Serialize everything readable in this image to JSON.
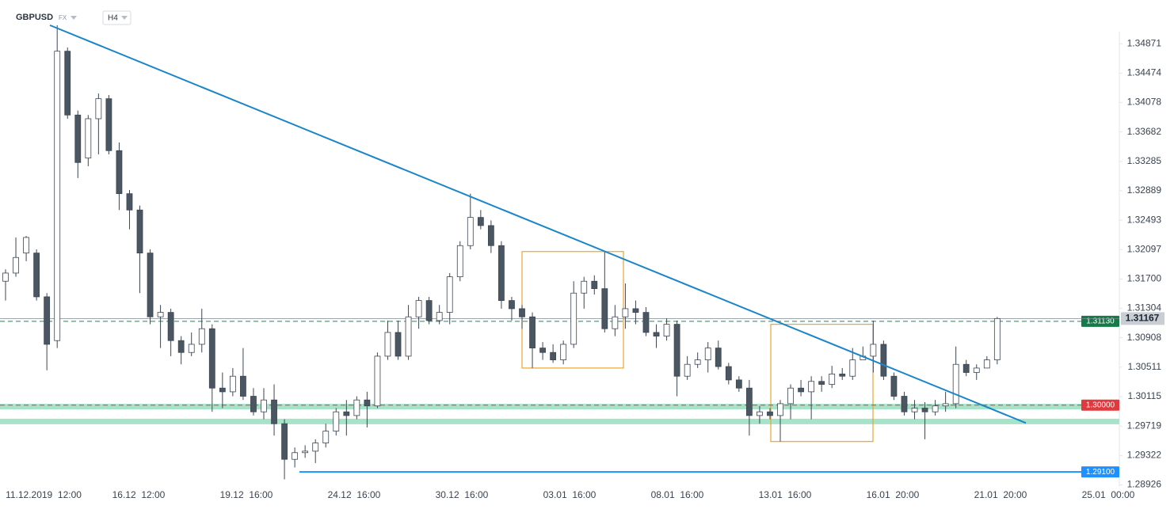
{
  "chart_data": {
    "type": "candlestick",
    "symbol": "GBPUSD",
    "market": "FX",
    "timeframe": "H4",
    "ylim": [
      1.286,
      1.3546
    ],
    "yticks": [
      1.34871,
      1.34474,
      1.34078,
      1.33682,
      1.33285,
      1.32889,
      1.32493,
      1.32097,
      {
        "value": 1.317,
        "label": "1.31700"
      },
      1.31304,
      1.30908,
      1.30511,
      1.30115,
      1.29719,
      1.29322,
      1.28926
    ],
    "categories": [
      "11.12.2019  12:00",
      "16.12  12:00",
      "19.12  16:00",
      "24.12  16:00",
      "30.12  16:00",
      "03.01  16:00",
      "08.01  16:00",
      "13.01  16:00",
      "16.01  20:00",
      "21.01  20:00",
      "25.01  00:00"
    ],
    "up_color": "#ffffff",
    "down_color": "#4b5663",
    "candles": [
      [
        1.3167,
        1.3183,
        1.3141,
        1.3178
      ],
      [
        1.3178,
        1.3226,
        1.3173,
        1.3199
      ],
      [
        1.3205,
        1.3228,
        1.3194,
        1.3226
      ],
      [
        1.3205,
        1.321,
        1.3141,
        1.3146
      ],
      [
        1.3146,
        1.3151,
        1.3047,
        1.3082
      ],
      [
        1.3087,
        1.3512,
        1.3077,
        1.3477
      ],
      [
        1.3477,
        1.3482,
        1.3386,
        1.3391
      ],
      [
        1.3391,
        1.3397,
        1.3306,
        1.3327
      ],
      [
        1.3333,
        1.3391,
        1.3322,
        1.3386
      ],
      [
        1.3386,
        1.342,
        1.3338,
        1.3413
      ],
      [
        1.3413,
        1.3418,
        1.3338,
        1.3343
      ],
      [
        1.3343,
        1.3354,
        1.3263,
        1.3285
      ],
      [
        1.3285,
        1.329,
        1.3237,
        1.3263
      ],
      [
        1.3263,
        1.3269,
        1.3151,
        1.3205
      ],
      [
        1.3205,
        1.321,
        1.3109,
        1.3119
      ],
      [
        1.3119,
        1.3135,
        1.3077,
        1.3125
      ],
      [
        1.3125,
        1.313,
        1.3066,
        1.3087
      ],
      [
        1.3087,
        1.3093,
        1.3055,
        1.3071
      ],
      [
        1.3071,
        1.3098,
        1.3066,
        1.3082
      ],
      [
        1.3082,
        1.313,
        1.3071,
        1.3103
      ],
      [
        1.3103,
        1.3109,
        1.2991,
        1.3023
      ],
      [
        1.3023,
        1.3044,
        1.2996,
        1.3018
      ],
      [
        1.3018,
        1.305,
        1.3012,
        1.3039
      ],
      [
        1.3039,
        1.3077,
        1.3007,
        1.3012
      ],
      [
        1.3012,
        1.3023,
        1.2986,
        1.2991
      ],
      [
        1.2991,
        1.3023,
        1.2981,
        1.3007
      ],
      [
        1.3007,
        1.3028,
        1.2959,
        1.2975
      ],
      [
        1.2975,
        1.2981,
        1.29,
        1.2927
      ],
      [
        1.2927,
        1.2943,
        1.2916,
        1.2936
      ],
      [
        1.2936,
        1.2946,
        1.2929,
        1.2938
      ],
      [
        1.2938,
        1.2954,
        1.2922,
        1.2949
      ],
      [
        1.2949,
        1.2975,
        1.2943,
        1.2965
      ],
      [
        1.2965,
        1.2996,
        1.2959,
        1.2991
      ],
      [
        1.2991,
        1.3007,
        1.2959,
        1.2986
      ],
      [
        1.2986,
        1.3012,
        1.2981,
        1.3007
      ],
      [
        1.3007,
        1.3018,
        1.297,
        1.2999
      ],
      [
        1.2999,
        1.3071,
        1.2996,
        1.3066
      ],
      [
        1.3066,
        1.3114,
        1.3061,
        1.3098
      ],
      [
        1.3098,
        1.3114,
        1.3061,
        1.3066
      ],
      [
        1.3066,
        1.3135,
        1.3061,
        1.3119
      ],
      [
        1.3119,
        1.3146,
        1.3103,
        1.3141
      ],
      [
        1.3141,
        1.3146,
        1.3109,
        1.3114
      ],
      [
        1.3114,
        1.3135,
        1.3109,
        1.3125
      ],
      [
        1.3125,
        1.3178,
        1.3109,
        1.3173
      ],
      [
        1.3173,
        1.3221,
        1.3167,
        1.3215
      ],
      [
        1.3215,
        1.3285,
        1.321,
        1.3253
      ],
      [
        1.3253,
        1.3263,
        1.3237,
        1.3242
      ],
      [
        1.3242,
        1.3249,
        1.3205,
        1.3215
      ],
      [
        1.3215,
        1.3221,
        1.313,
        1.3141
      ],
      [
        1.3141,
        1.3146,
        1.3114,
        1.313
      ],
      [
        1.313,
        1.3135,
        1.3103,
        1.3119
      ],
      [
        1.3119,
        1.3125,
        1.305,
        1.3077
      ],
      [
        1.3077,
        1.3085,
        1.3061,
        1.3071
      ],
      [
        1.3071,
        1.3082,
        1.3057,
        1.3061
      ],
      [
        1.3061,
        1.3087,
        1.3055,
        1.3082
      ],
      [
        1.3082,
        1.3167,
        1.3077,
        1.3151
      ],
      [
        1.3151,
        1.3173,
        1.313,
        1.3167
      ],
      [
        1.3167,
        1.3175,
        1.3149,
        1.3157
      ],
      [
        1.3157,
        1.3207,
        1.3098,
        1.3103
      ],
      [
        1.3103,
        1.3135,
        1.3093,
        1.3119
      ],
      [
        1.3119,
        1.3164,
        1.3103,
        1.313
      ],
      [
        1.313,
        1.3141,
        1.3109,
        1.3125
      ],
      [
        1.3125,
        1.3132,
        1.3093,
        1.3098
      ],
      [
        1.3098,
        1.3109,
        1.3077,
        1.3093
      ],
      [
        1.3093,
        1.3117,
        1.3087,
        1.3109
      ],
      [
        1.3109,
        1.3114,
        1.3012,
        1.3039
      ],
      [
        1.3039,
        1.3066,
        1.3034,
        1.3055
      ],
      [
        1.3055,
        1.3071,
        1.305,
        1.3061
      ],
      [
        1.3061,
        1.3085,
        1.3044,
        1.3077
      ],
      [
        1.3077,
        1.3087,
        1.3048,
        1.3052
      ],
      [
        1.3052,
        1.3057,
        1.3028,
        1.3034
      ],
      [
        1.3034,
        1.3039,
        1.3018,
        1.3023
      ],
      [
        1.3023,
        1.3034,
        1.2959,
        1.2986
      ],
      [
        1.2986,
        1.2999,
        1.2975,
        1.2991
      ],
      [
        1.2991,
        1.2996,
        1.2981,
        1.2986
      ],
      [
        1.2986,
        1.3007,
        1.2951,
        1.3002
      ],
      [
        1.3002,
        1.3028,
        1.2981,
        1.3023
      ],
      [
        1.3023,
        1.3034,
        1.3012,
        1.3018
      ],
      [
        1.3018,
        1.3039,
        1.2981,
        1.3032
      ],
      [
        1.3032,
        1.3039,
        1.3018,
        1.3028
      ],
      [
        1.3028,
        1.3053,
        1.3023,
        1.3042
      ],
      [
        1.3042,
        1.305,
        1.3034,
        1.3039
      ],
      [
        1.3039,
        1.3077,
        1.3034,
        1.3061
      ],
      [
        1.3061,
        1.3079,
        1.3061,
        1.3066
      ],
      [
        1.3066,
        1.3114,
        1.3044,
        1.3082
      ],
      [
        1.3082,
        1.3087,
        1.3034,
        1.3039
      ],
      [
        1.3039,
        1.3044,
        1.3007,
        1.3012
      ],
      [
        1.3012,
        1.3018,
        1.2986,
        1.2991
      ],
      [
        1.2991,
        1.3007,
        1.2981,
        1.2996
      ],
      [
        1.2996,
        1.3004,
        1.2954,
        1.2991
      ],
      [
        1.2991,
        1.3007,
        1.2986,
        1.2999
      ],
      [
        1.2999,
        1.3018,
        1.2991,
        1.3002
      ],
      [
        1.3002,
        1.3079,
        1.2996,
        1.3055
      ],
      [
        1.3055,
        1.3061,
        1.3039,
        1.3044
      ],
      [
        1.3044,
        1.3055,
        1.3034,
        1.305
      ],
      [
        1.305,
        1.3066,
        1.305,
        1.3061
      ],
      [
        1.3061,
        1.3119,
        1.3055,
        1.31167
      ]
    ],
    "trendline": {
      "start": 1.3512,
      "end": 1.2976,
      "color": "#1a86c8"
    },
    "zones": [
      1.2998,
      1.2978
    ],
    "zone_color": "#a6e3c9",
    "boxes": [
      {
        "high": 1.3207,
        "low": 1.305
      },
      {
        "high": 1.3109,
        "low": 1.2951
      }
    ],
    "box_color": "#e6a531",
    "levels": [
      {
        "value": 1.3113,
        "label": "1.31130",
        "color": "#137a48",
        "line": "#1f8a55"
      },
      {
        "value": 1.3,
        "label": "1.30000",
        "color": "#e0393e",
        "line": "#e0393e"
      },
      {
        "value": 1.291,
        "label": "1.29100",
        "color": "#1e90ff",
        "line": "#1e90ff"
      }
    ],
    "last": {
      "value": 1.31167,
      "label": "1.31167"
    }
  }
}
